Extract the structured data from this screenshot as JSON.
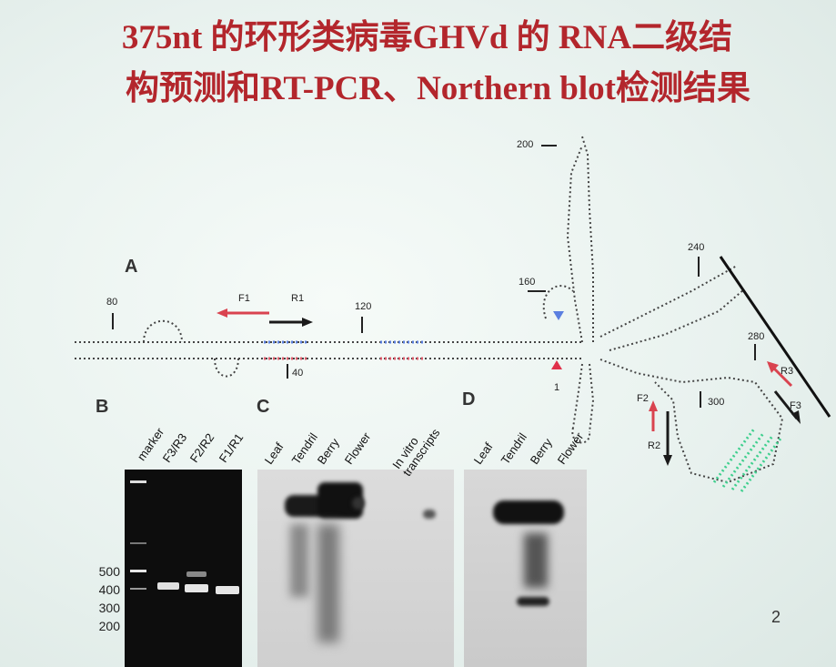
{
  "slide": {
    "title_line1": "375nt 的环形类病毒GHVd 的 RNA二级结",
    "title_line2": "构预测和RT-PCR、Northern blot检测结果",
    "page_number": "2"
  },
  "panel_a": {
    "label": "A",
    "position_labels": [
      "80",
      "120",
      "40",
      "160",
      "200",
      "240",
      "280",
      "300",
      "1"
    ],
    "primers": [
      "F1",
      "R1",
      "F2",
      "R2",
      "R3",
      "F3"
    ]
  },
  "panel_b": {
    "label": "B",
    "lanes": [
      "marker",
      "F3/R3",
      "F2/R2",
      "F1/R1"
    ],
    "marker_sizes": [
      "500",
      "400",
      "300",
      "200"
    ]
  },
  "panel_c": {
    "label": "C",
    "lanes": [
      "Leaf",
      "Tendril",
      "Berry",
      "Flower",
      "In vitro transcripts"
    ]
  },
  "panel_d": {
    "label": "D",
    "lanes": [
      "Leaf",
      "Tendril",
      "Berry",
      "Flower"
    ]
  },
  "colors": {
    "title": "#b3262c",
    "arrow_red": "#d9434f",
    "arrow_black": "#1a1a1a",
    "highlight_blue": "#5b7fe0",
    "highlight_green": "#3fcf8e"
  }
}
